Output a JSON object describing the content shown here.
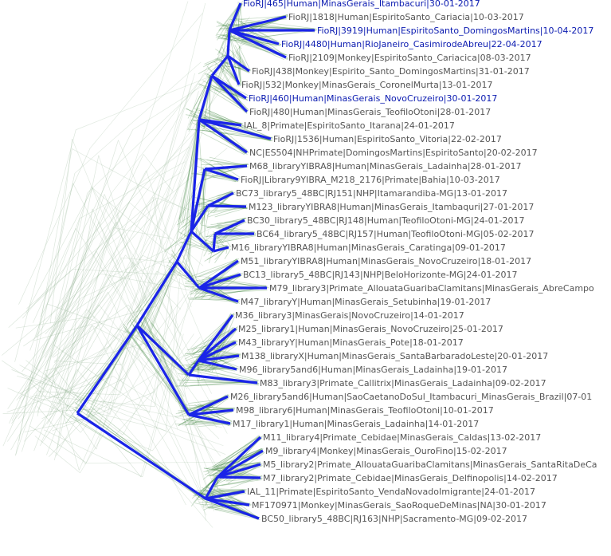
{
  "colors": {
    "consensus": "#1a24e8",
    "bundle": "#2f7a2f",
    "bundle_light": "#9ab89a",
    "label": "#555555",
    "label_highlight": "#0a1ab0",
    "background": "#ffffff"
  },
  "tips": [
    {
      "label": "FioRJ|465|Human|MinasGerais_Itambacuri|30-01-2017",
      "highlight": true
    },
    {
      "label": "FioRJ|1818|Human|EspiritoSanto_Cariacia|10-03-2017",
      "highlight": false
    },
    {
      "label": "FioRJ|3919|Human|EspiritoSanto_DomingosMartins|10-04-2017",
      "highlight": true
    },
    {
      "label": "FioRJ|4480|Human|RioJaneiro_CasimirodeAbreu|22-04-2017",
      "highlight": true
    },
    {
      "label": "FioRJ|2109|Monkey|EspiritoSanto_Cariacica|08-03-2017",
      "highlight": false
    },
    {
      "label": "FioRJ|438|Monkey|Espirito_Santo_DomingosMartins|31-01-2017",
      "highlight": false
    },
    {
      "label": "FioRJ|532|Monkey|MinasGerais_CoronelMurta|13-01-2017",
      "highlight": false
    },
    {
      "label": "FioRJ|460|Human|MinasGerais_NovoCruzeiro|30-01-2017",
      "highlight": true
    },
    {
      "label": "FioRJ|480|Human|MinasGerais_TeofiloOtoni|28-01-2017",
      "highlight": false
    },
    {
      "label": "IAL_8|Primate|EspiritoSanto_Itarana|24-01-2017",
      "highlight": false
    },
    {
      "label": "FioRJ|1536|Human|EspiritoSanto_Vitoria|22-02-2017",
      "highlight": false
    },
    {
      "label": "NC|ES504|NHPrimate|DomingosMartins|EspiritoSanto|20-02-2017",
      "highlight": false
    },
    {
      "label": "M68_libraryYIBRA8|Human|MinasGerais_Ladainha|28-01-2017",
      "highlight": false
    },
    {
      "label": "FioRJ|Library9YIBRA_M218_2176|Primate|Bahia|10-03-2017",
      "highlight": false
    },
    {
      "label": "BC73_library5_48BC|RJ151|NHP|Itamarandiba-MG|13-01-2017",
      "highlight": false
    },
    {
      "label": "M123_libraryYIBRA8|Human|MinasGerais_Itambaquri|27-01-2017",
      "highlight": false
    },
    {
      "label": "BC30_library5_48BC|RJ148|Human|TeofiloOtoni-MG|24-01-2017",
      "highlight": false
    },
    {
      "label": "BC64_library5_48BC|RJ157|Human|TeofiloOtoni-MG|05-02-2017",
      "highlight": false
    },
    {
      "label": "M16_libraryYIBRA8|Human|MinasGerais_Caratinga|09-01-2017",
      "highlight": false
    },
    {
      "label": "M51_libraryYIBRA8|Human|MinasGerais_NovoCruzeiro|18-01-2017",
      "highlight": false
    },
    {
      "label": "BC13_library5_48BC|RJ143|NHP|BeloHorizonte-MG|24-01-2017",
      "highlight": false
    },
    {
      "label": "M79_library3|Primate_AllouataGuaribaClamitans|MinasGerais_AbreCampo",
      "highlight": false
    },
    {
      "label": "M47_libraryY|Human|MinasGerais_Setubinha|19-01-2017",
      "highlight": false
    },
    {
      "label": "M36_library3|MinasGerais|NovoCruzeiro|14-01-2017",
      "highlight": false
    },
    {
      "label": "M25_library1|Human|MinasGerais_NovoCruzeiro|25-01-2017",
      "highlight": false
    },
    {
      "label": "M43_libraryY|Human|MinasGerais_Pote|18-01-2017",
      "highlight": false
    },
    {
      "label": "M138_libraryX|Human|MinasGerais_SantaBarbaradoLeste|20-01-2017",
      "highlight": false
    },
    {
      "label": "M96_library5and6|Human|MinasGerais_Ladainha|19-01-2017",
      "highlight": false
    },
    {
      "label": "M83_library3|Primate_Callitrix|MinasGerais_Ladainha|09-02-2017",
      "highlight": false
    },
    {
      "label": "M26_library5and6|Human|SaoCaetanoDoSul_Itambacuri_MinasGerais_Brazil|07-01",
      "highlight": false
    },
    {
      "label": "M98_library6|Human|MinasGerais_TeofiloOtoni|10-01-2017",
      "highlight": false
    },
    {
      "label": "M17_library1|Human|MinasGerais_Ladainha|14-01-2017",
      "highlight": false
    },
    {
      "label": "M11_library4|Primate_Cebidae|MinasGerais_Caldas|13-02-2017",
      "highlight": false
    },
    {
      "label": "M9_library4|Monkey|MinasGerais_OuroFino|15-02-2017",
      "highlight": false
    },
    {
      "label": "M5_library2|Primate_AllouataGuaribaClamitans|MinasGerais_SantaRitaDeCa",
      "highlight": false
    },
    {
      "label": "M7_library2|Primate_Cebidae|MinasGerais_Delfinopolis|14-02-2017",
      "highlight": false
    },
    {
      "label": "IAL_11|Primate|EspiritoSanto_VendaNovadoImigrante|24-01-2017",
      "highlight": false
    },
    {
      "label": "MF170971|Monkey|MinasGerais_SaoRoqueDeMinas|NA|30-01-2017",
      "highlight": false
    },
    {
      "label": "BC50_library5_48BC|RJ163|NHP|Sacramento-MG|09-02-2017",
      "highlight": false
    }
  ]
}
